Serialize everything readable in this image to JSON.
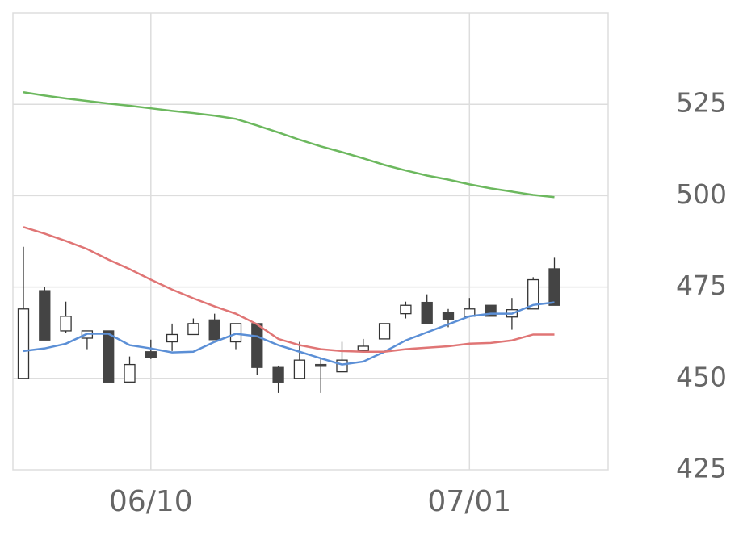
{
  "chart_data": {
    "type": "candlestick",
    "categories": [
      null,
      null,
      null,
      null,
      null,
      null,
      "06/10",
      null,
      null,
      null,
      null,
      null,
      null,
      null,
      null,
      null,
      null,
      null,
      null,
      null,
      null,
      "07/01",
      null,
      null,
      null,
      null
    ],
    "open": [
      450,
      474,
      463,
      461,
      463,
      449,
      457.3,
      460,
      462,
      466,
      460,
      465,
      453,
      450,
      453.8,
      451.8,
      457.7,
      460.8,
      467.7,
      470.8,
      468,
      467,
      470,
      466.8,
      469,
      480
    ],
    "high": [
      486,
      475,
      471,
      463,
      463,
      456,
      460.6,
      465,
      466.4,
      467.7,
      465,
      465,
      453.5,
      460,
      455.8,
      460,
      460.8,
      465,
      471,
      473,
      469,
      472,
      470,
      472,
      477.7,
      483
    ],
    "low": [
      450,
      460.5,
      462.5,
      458,
      449,
      449,
      455.3,
      457.5,
      462,
      460.6,
      458,
      451,
      446,
      450,
      446,
      451.8,
      457.7,
      460.8,
      466.4,
      465,
      464,
      467,
      467,
      463.3,
      469,
      470
    ],
    "close": [
      469,
      460.5,
      467,
      463,
      449,
      453.8,
      455.8,
      462,
      465,
      460.6,
      465,
      453,
      449,
      455,
      453.3,
      455,
      458.8,
      465,
      470,
      465,
      466,
      469,
      467,
      468.8,
      477,
      470
    ],
    "up_color": "#ffffff",
    "down_color": "#444444",
    "lines": [
      {
        "color": "#5b8fd6",
        "values": [
          457.5,
          458.2,
          459.5,
          462.2,
          462.2,
          459.1,
          458.2,
          457.1,
          457.3,
          460,
          462.2,
          461.5,
          459.1,
          457.3,
          455.5,
          453.8,
          454.6,
          457.3,
          460.4,
          462.6,
          464.8,
          467,
          467.7,
          467.7,
          470.1,
          470.8
        ]
      },
      {
        "color": "#e07575",
        "values": [
          491.4,
          489.6,
          487.6,
          485.4,
          482.5,
          479.9,
          477,
          474.3,
          471.9,
          469.7,
          467.7,
          464.8,
          460.8,
          459.1,
          458,
          457.5,
          457.3,
          457.3,
          458,
          458.4,
          458.8,
          459.5,
          459.7,
          460.4,
          462,
          462
        ]
      },
      {
        "color": "#6cb85e",
        "values": [
          528.3,
          527.4,
          526.6,
          525.9,
          525.2,
          524.6,
          523.9,
          523.2,
          522.6,
          521.9,
          521,
          519.2,
          517.3,
          515.3,
          513.5,
          511.9,
          510.2,
          508.4,
          506.9,
          505.5,
          504.4,
          503.1,
          502,
          501.1,
          500.2,
          499.6
        ]
      }
    ],
    "ylim": [
      425,
      550
    ],
    "yticks": [
      425,
      450,
      475,
      500,
      525
    ],
    "grid": true
  }
}
